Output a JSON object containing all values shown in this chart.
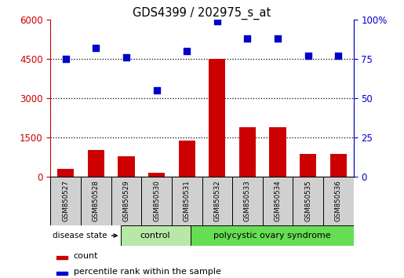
{
  "title": "GDS4399 / 202975_s_at",
  "samples": [
    "GSM850527",
    "GSM850528",
    "GSM850529",
    "GSM850530",
    "GSM850531",
    "GSM850532",
    "GSM850533",
    "GSM850534",
    "GSM850535",
    "GSM850536"
  ],
  "counts": [
    290,
    1020,
    760,
    145,
    1380,
    4480,
    1870,
    1870,
    850,
    870
  ],
  "percentiles": [
    75,
    82,
    76,
    55,
    80,
    99,
    88,
    88,
    77,
    77
  ],
  "left_yticks": [
    0,
    1500,
    3000,
    4500,
    6000
  ],
  "left_ylabels": [
    "0",
    "1500",
    "3000",
    "4500",
    "6000"
  ],
  "right_yticks": [
    0,
    25,
    50,
    75,
    100
  ],
  "right_ylabels": [
    "0",
    "25",
    "50",
    "75",
    "100%"
  ],
  "left_ylim": [
    0,
    6000
  ],
  "right_ylim": [
    0,
    100
  ],
  "bar_color": "#cc0000",
  "scatter_color": "#0000cc",
  "n_control": 3,
  "control_label": "control",
  "pcos_label": "polycystic ovary syndrome",
  "disease_state_label": "disease state",
  "legend_count": "count",
  "legend_percentile": "percentile rank within the sample",
  "control_color": "#b8e8a8",
  "pcos_color": "#66dd55",
  "tick_label_color_left": "#cc0000",
  "tick_label_color_right": "#0000cc",
  "label_box_color": "#d0d0d0"
}
